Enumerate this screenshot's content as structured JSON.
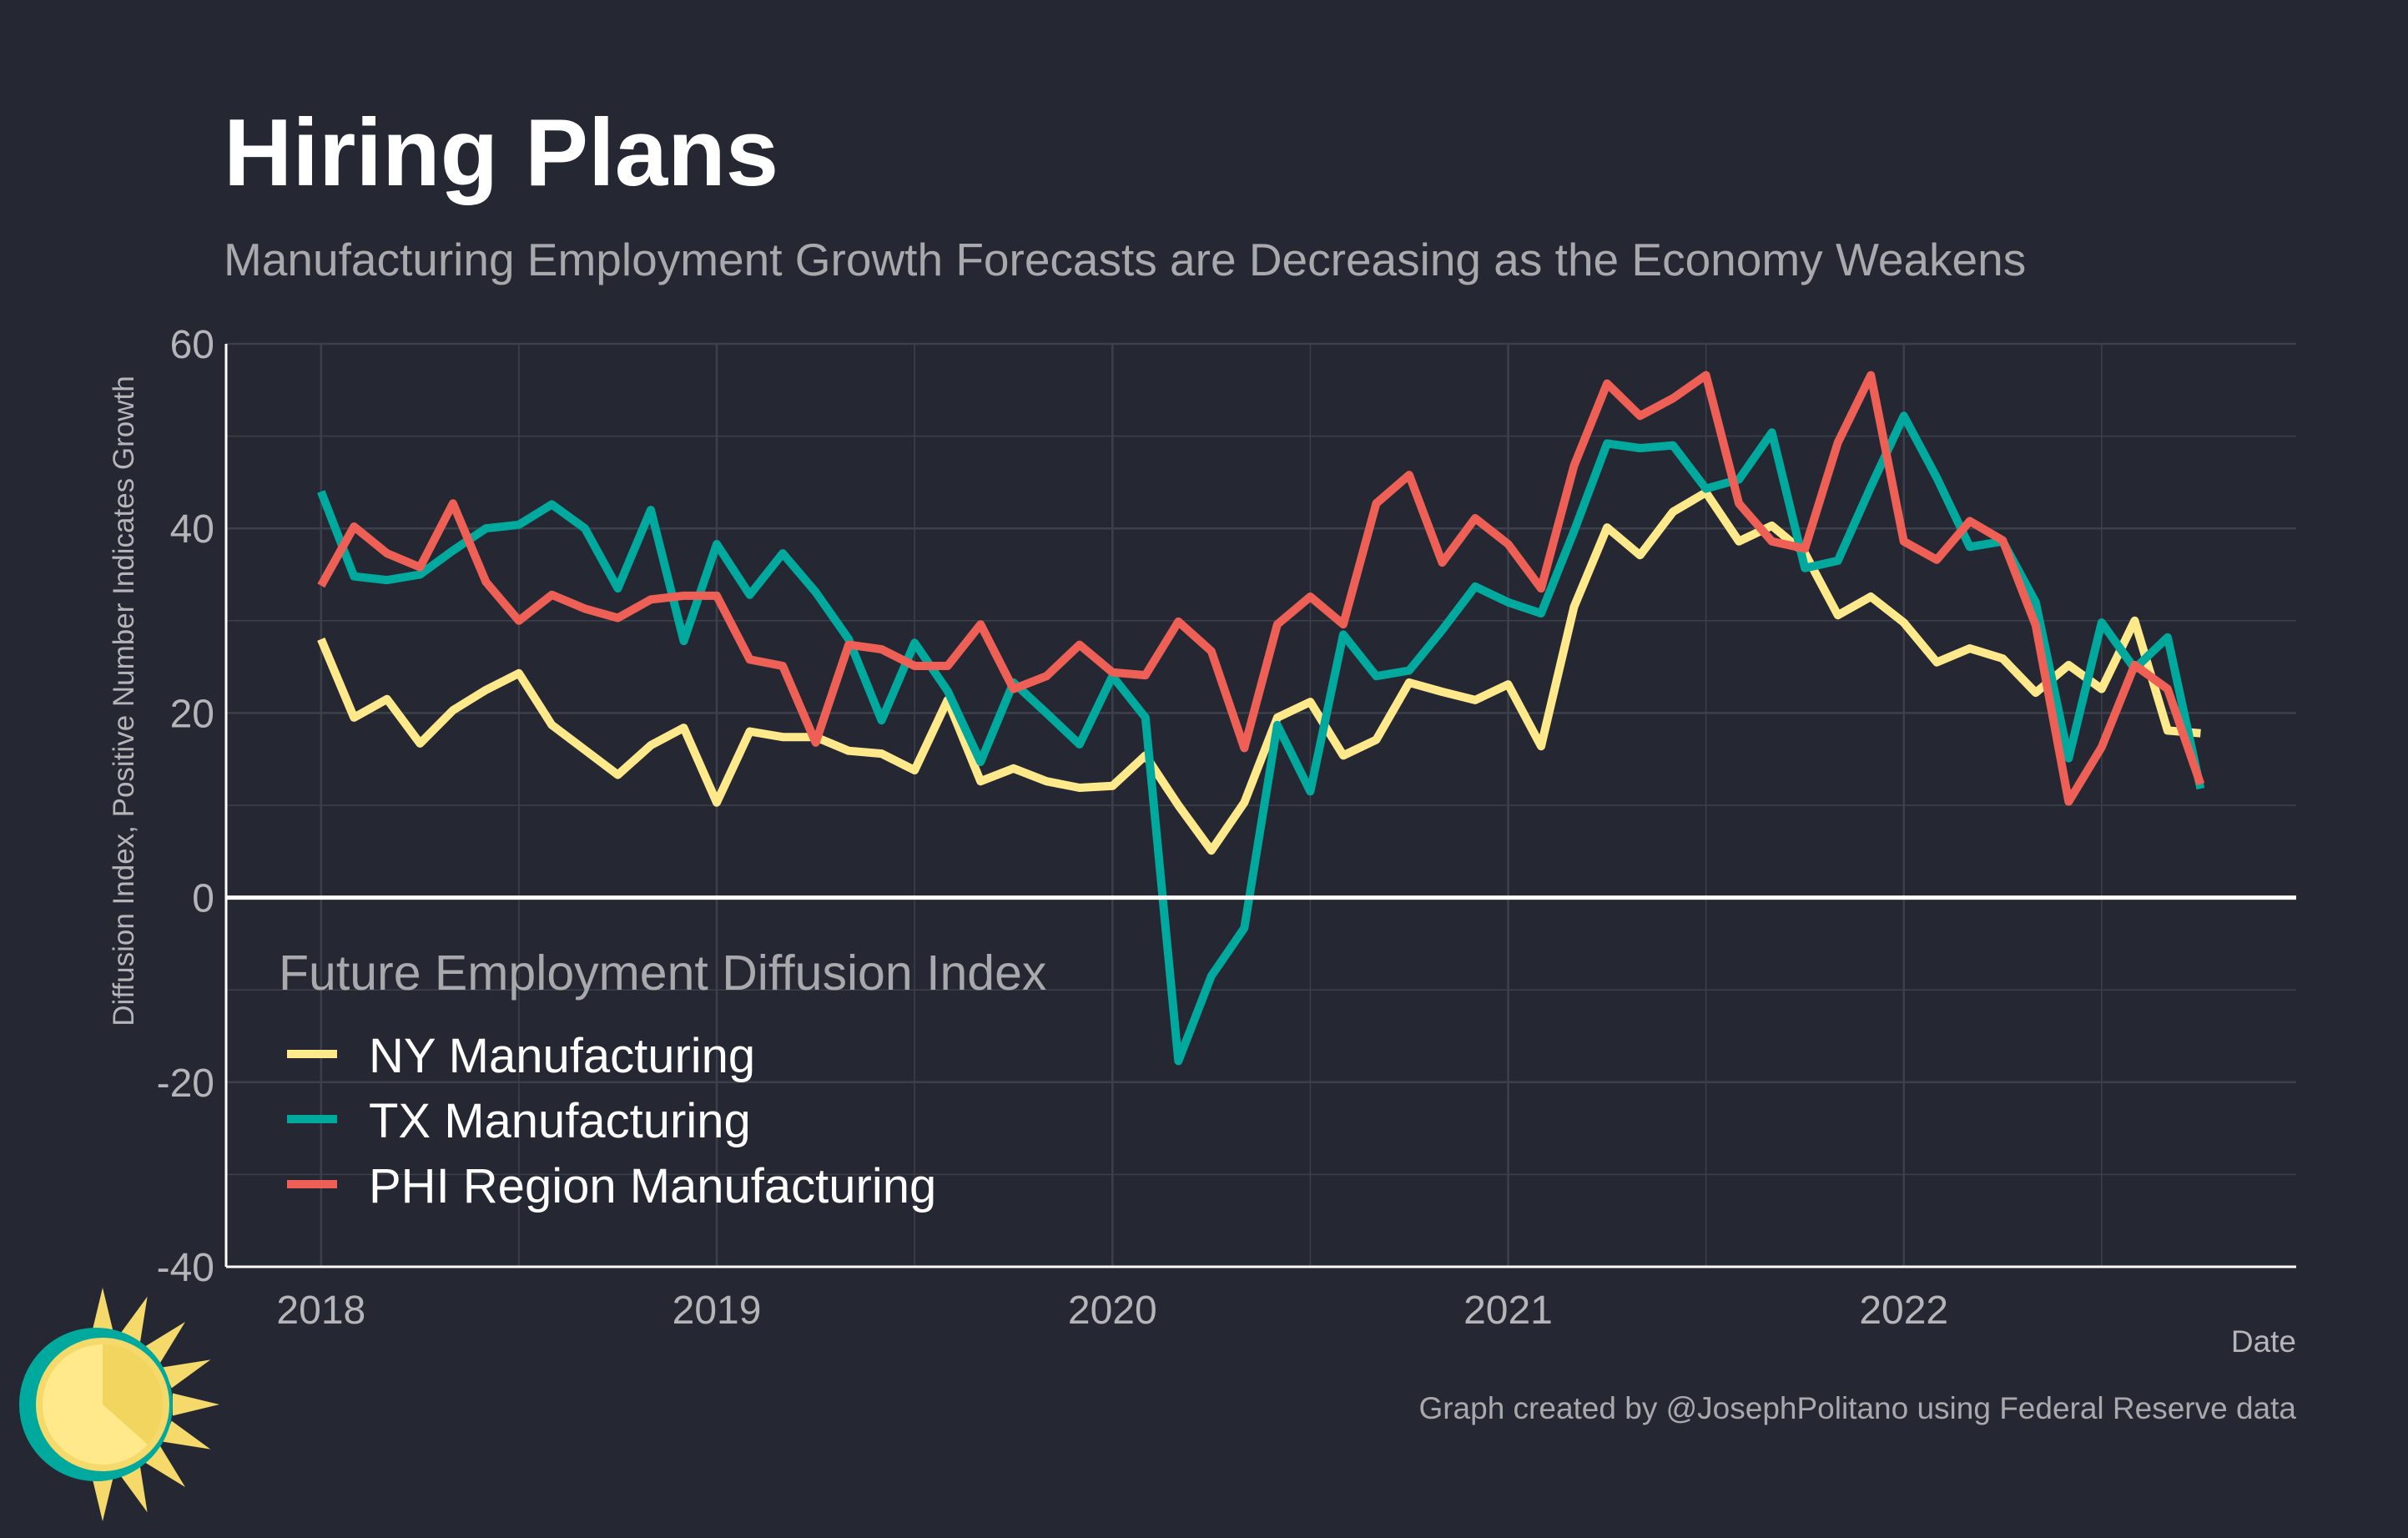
{
  "chart_data": {
    "type": "line",
    "title": "Hiring Plans",
    "subtitle": "Manufacturing Employment Growth Forecasts are Decreasing as the Economy Weakens",
    "xlabel": "Date",
    "ylabel": "Diffusion Index, Positive Number Indicates Growth",
    "x_start": "2018-01",
    "x_frequency": "monthly",
    "x_ticks": [
      "2018",
      "2019",
      "2020",
      "2021",
      "2022"
    ],
    "y_ticks": [
      60,
      40,
      20,
      0,
      -20,
      -40
    ],
    "ylim": [
      -40,
      60
    ],
    "xlim": [
      "2017-10",
      "2022-12"
    ],
    "grid": true,
    "legend_title": "Future Employment Diffusion Index",
    "legend_placement": "bottom-left",
    "series": [
      {
        "name": "NY Manufacturing",
        "color": "#FFE98A",
        "values": [
          28,
          19.5,
          21.5,
          16.7,
          20.3,
          22.5,
          24.3,
          18.7,
          16,
          13.3,
          16.5,
          18.4,
          10.3,
          18,
          17.4,
          17.4,
          15.9,
          15.6,
          13.8,
          21.4,
          12.6,
          14,
          12.6,
          11.9,
          12.1,
          15.4,
          10,
          5.1,
          10.3,
          19.5,
          21.2,
          15.4,
          17.1,
          23.3,
          22.3,
          21.4,
          23.1,
          16.4,
          31.5,
          40.1,
          37.1,
          41.8,
          43.9,
          38.6,
          40.3,
          37.3,
          30.6,
          32.6,
          29.8,
          25.5,
          27,
          25.9,
          22.2,
          25.2,
          22.6,
          30,
          18.1,
          17.8
        ]
      },
      {
        "name": "TX Manufacturing",
        "color": "#00A99D",
        "values": [
          44,
          34.8,
          34.4,
          35,
          37.6,
          40,
          40.4,
          42.6,
          40,
          33.5,
          42,
          27.8,
          38.3,
          32.8,
          37.3,
          33.1,
          28,
          19.2,
          27.6,
          22.4,
          14.7,
          23.3,
          20,
          16.6,
          24,
          19.5,
          -17.7,
          -8.5,
          -3.3,
          18.7,
          11.5,
          28.5,
          24,
          24.6,
          29,
          33.7,
          32,
          30.8,
          39.7,
          49.2,
          48.7,
          49,
          44.3,
          45.3,
          50.4,
          35.7,
          36.5,
          44.5,
          52.2,
          45.5,
          38,
          38.6,
          32,
          15.1,
          29.8,
          24.8,
          28.2,
          11.8
        ]
      },
      {
        "name": "PHI Region Manufacturing",
        "color": "#EE6055",
        "values": [
          33.8,
          40.2,
          37.3,
          35.8,
          42.7,
          34.2,
          30,
          32.8,
          31.3,
          30.3,
          32.3,
          32.7,
          32.7,
          25.8,
          25.1,
          16.8,
          27.4,
          26.9,
          25.1,
          25.1,
          29.6,
          22.6,
          24,
          27.4,
          24.4,
          24.1,
          29.9,
          26.7,
          16.2,
          29.6,
          32.6,
          29.6,
          42.7,
          45.8,
          36.3,
          41.1,
          38.3,
          33.5,
          46.8,
          55.7,
          52.2,
          54.1,
          56.6,
          42.7,
          38.6,
          37.8,
          49.3,
          56.6,
          38.6,
          36.6,
          40.8,
          38.7,
          29.5,
          10.4,
          16.3,
          25.2,
          22.6,
          12.3
        ]
      }
    ]
  },
  "footer": {
    "credit": "Graph created by @JosephPolitano using Federal Reserve data"
  },
  "colors": {
    "background": "#252832",
    "grid": "#3c404a",
    "zero_line": "#ffffff"
  },
  "logo": {
    "icon": "sun-logo-icon"
  }
}
